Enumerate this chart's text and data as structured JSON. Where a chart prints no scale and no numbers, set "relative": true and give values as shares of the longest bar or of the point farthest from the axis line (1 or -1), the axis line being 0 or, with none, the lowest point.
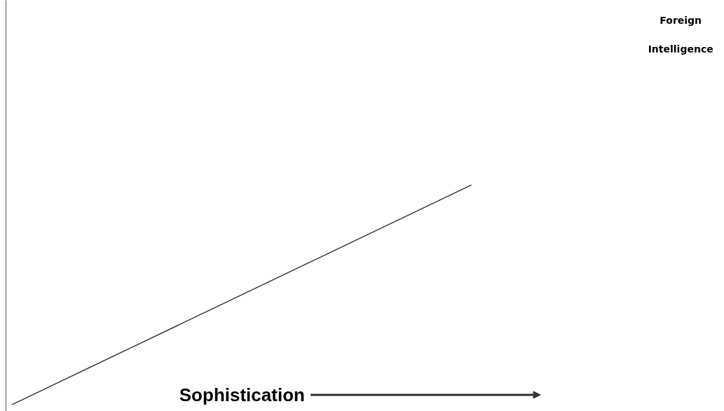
{
  "chart_data": {
    "type": "line",
    "relative": true,
    "xlabel": "Sophistication",
    "categories": [
      null,
      null,
      null,
      null,
      null
    ],
    "series": [
      {
        "color": "#333333",
        "values": [
          0,
          0.25,
          0.5,
          0.75,
          1
        ]
      }
    ],
    "annotations": [
      "Foreign Intelligence"
    ],
    "tick_labels": false,
    "grid": false,
    "marker": "none",
    "line_style": "solid"
  }
}
